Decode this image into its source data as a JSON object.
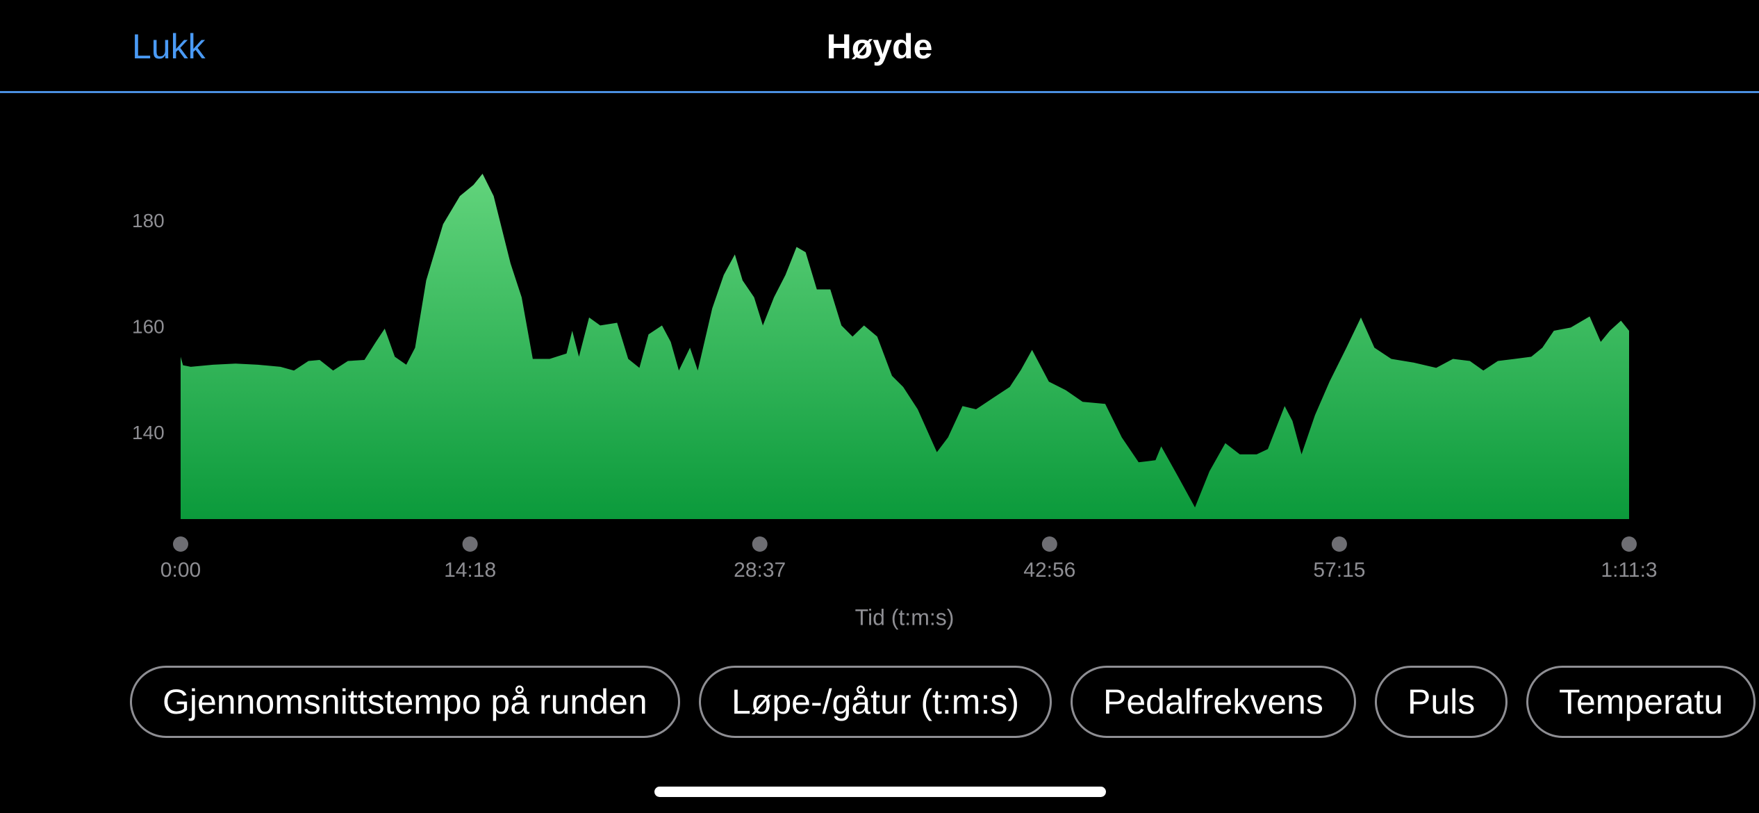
{
  "header": {
    "close": "Lukk",
    "title": "Høyde"
  },
  "chart_data": {
    "type": "area",
    "x_label": "Tid (t:m:s)",
    "color_top": "#62d47c",
    "color_bottom": "#0b9a3b",
    "x": [
      0,
      7,
      30,
      96,
      163,
      229,
      296,
      336,
      379,
      412,
      452,
      496,
      545,
      579,
      605,
      635,
      669,
      695,
      728,
      778,
      828,
      868,
      895,
      928,
      978,
      1011,
      1044,
      1094,
      1144,
      1161,
      1181,
      1211,
      1244,
      1294,
      1327,
      1360,
      1387,
      1427,
      1453,
      1477,
      1510,
      1533,
      1576,
      1610,
      1643,
      1666,
      1700,
      1726,
      1759,
      1793,
      1826,
      1853,
      1886,
      1926,
      1959,
      1992,
      2026,
      2065,
      2109,
      2142,
      2185,
      2242,
      2275,
      2318,
      2358,
      2408,
      2458,
      2491,
      2524,
      2574,
      2624,
      2674,
      2741,
      2790,
      2840,
      2890,
      2907,
      2957,
      3007,
      3050,
      3097,
      3140,
      3190,
      3223,
      3273,
      3296,
      3323,
      3363,
      3406,
      3456,
      3499,
      3539,
      3589,
      3655,
      3722,
      3772,
      3822,
      3862,
      3905,
      3955,
      4004,
      4037,
      4071,
      4121,
      4177,
      4210,
      4237,
      4270,
      4294
    ],
    "values": [
      154.6,
      153,
      152.7,
      153.1,
      153.3,
      153.1,
      152.7,
      152,
      153.8,
      154,
      152,
      153.8,
      154,
      157.4,
      159.9,
      154.6,
      153.1,
      156.3,
      169,
      179.6,
      184.9,
      187,
      189.1,
      184.9,
      172.2,
      165.8,
      154.2,
      154.2,
      155.2,
      159.5,
      154.6,
      162,
      160.5,
      161,
      154.2,
      152.5,
      158.8,
      160.5,
      157.4,
      152,
      156.3,
      152,
      163.7,
      170,
      173.9,
      169,
      165.8,
      160.5,
      165.8,
      170,
      175.3,
      174.3,
      167.3,
      167.3,
      160.5,
      158.4,
      160.5,
      158.4,
      151,
      148.9,
      144.7,
      136.6,
      139.4,
      145.3,
      144.7,
      146.8,
      148.9,
      152.1,
      155.9,
      149.9,
      148.3,
      146.1,
      145.7,
      139.4,
      134.7,
      135.1,
      137.7,
      132,
      126.2,
      133,
      138.3,
      136.2,
      136.2,
      137.2,
      145.3,
      142.5,
      136.2,
      143.6,
      149.9,
      156.3,
      162,
      156.3,
      154.2,
      153.5,
      152.5,
      154.2,
      153.8,
      152,
      153.8,
      154.2,
      154.6,
      156.3,
      159.5,
      160.1,
      162.2,
      157.4,
      159.5,
      161.4,
      159.5
    ],
    "xlim": [
      0,
      4294
    ],
    "ylim": [
      124,
      195
    ],
    "xticks": [
      {
        "value": 0,
        "label": "0:00"
      },
      {
        "value": 858,
        "label": "14:18"
      },
      {
        "value": 1717,
        "label": "28:37"
      },
      {
        "value": 2576,
        "label": "42:56"
      },
      {
        "value": 3435,
        "label": "57:15"
      },
      {
        "value": 4294,
        "label": "1:11:3"
      }
    ],
    "yticks": [
      140,
      160,
      180
    ]
  },
  "chips": [
    "Gjennomsnittstempo på runden",
    "Løpe-/gåtur (t:m:s)",
    "Pedalfrekvens",
    "Puls",
    "Temperatu"
  ]
}
